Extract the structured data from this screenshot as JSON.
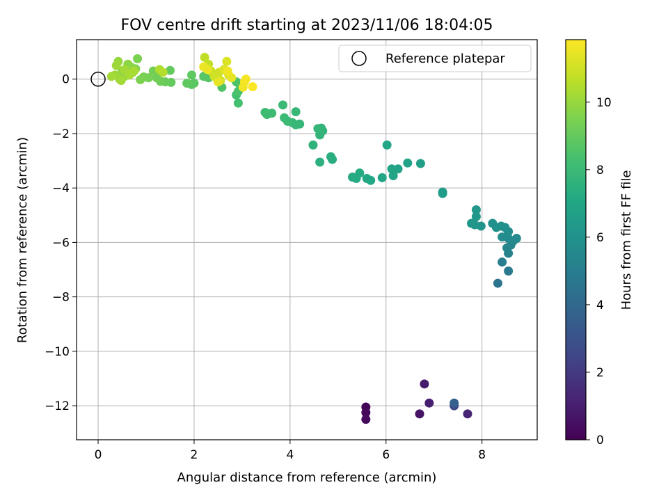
{
  "chart_data": {
    "type": "scatter",
    "title": "FOV centre drift starting at 2023/11/06 18:04:05",
    "xlabel": "Angular distance from reference (arcmin)",
    "ylabel": "Rotation from reference (arcmin)",
    "xlim": [
      -0.45,
      9.15
    ],
    "ylim": [
      -13.25,
      1.45
    ],
    "xticks": [
      0,
      2,
      4,
      6,
      8
    ],
    "yticks": [
      0,
      -2,
      -4,
      -6,
      -8,
      -10,
      -12
    ],
    "xtick_labels": [
      "0",
      "2",
      "4",
      "6",
      "8"
    ],
    "ytick_labels": [
      "0",
      "−2",
      "−4",
      "−6",
      "−8",
      "−10",
      "−12"
    ],
    "grid": true,
    "legend": {
      "placement": "top-right",
      "entries": [
        {
          "label": "Reference platepar",
          "marker": "open-circle"
        }
      ]
    },
    "reference_point": {
      "x": 0,
      "y": 0
    },
    "colorbar": {
      "label": "Hours from first FF file",
      "colormap": "viridis",
      "range": [
        0,
        11.85
      ],
      "ticks": [
        0,
        2,
        4,
        6,
        8,
        10
      ],
      "tick_labels": [
        "0",
        "2",
        "4",
        "6",
        "8",
        "10"
      ]
    },
    "points": [
      {
        "x": 5.58,
        "y": -12.05,
        "h": 0.1
      },
      {
        "x": 5.58,
        "y": -12.25,
        "h": 0.2
      },
      {
        "x": 5.58,
        "y": -12.5,
        "h": 0.3
      },
      {
        "x": 6.7,
        "y": -12.3,
        "h": 0.6
      },
      {
        "x": 6.8,
        "y": -11.2,
        "h": 0.9
      },
      {
        "x": 6.9,
        "y": -11.9,
        "h": 1.0
      },
      {
        "x": 7.7,
        "y": -12.3,
        "h": 1.2
      },
      {
        "x": 7.42,
        "y": -12.0,
        "h": 2.6
      },
      {
        "x": 7.42,
        "y": -11.9,
        "h": 3.6
      },
      {
        "x": 8.33,
        "y": -7.5,
        "h": 4.5
      },
      {
        "x": 8.55,
        "y": -7.05,
        "h": 4.8
      },
      {
        "x": 8.42,
        "y": -6.72,
        "h": 5.0
      },
      {
        "x": 8.55,
        "y": -6.4,
        "h": 5.2
      },
      {
        "x": 8.52,
        "y": -6.2,
        "h": 5.3
      },
      {
        "x": 8.6,
        "y": -6.1,
        "h": 5.4
      },
      {
        "x": 8.65,
        "y": -5.95,
        "h": 5.5
      },
      {
        "x": 8.72,
        "y": -5.85,
        "h": 5.6
      },
      {
        "x": 8.55,
        "y": -5.85,
        "h": 5.6
      },
      {
        "x": 8.42,
        "y": -5.8,
        "h": 5.7
      },
      {
        "x": 8.55,
        "y": -5.6,
        "h": 5.8
      },
      {
        "x": 8.48,
        "y": -5.45,
        "h": 5.9
      },
      {
        "x": 8.4,
        "y": -5.4,
        "h": 5.9
      },
      {
        "x": 8.3,
        "y": -5.45,
        "h": 6.0
      },
      {
        "x": 8.22,
        "y": -5.3,
        "h": 6.0
      },
      {
        "x": 7.98,
        "y": -5.4,
        "h": 6.1
      },
      {
        "x": 7.85,
        "y": -5.35,
        "h": 6.2
      },
      {
        "x": 7.78,
        "y": -5.3,
        "h": 6.2
      },
      {
        "x": 7.88,
        "y": -5.05,
        "h": 6.3
      },
      {
        "x": 7.88,
        "y": -4.8,
        "h": 6.3
      },
      {
        "x": 7.18,
        "y": -4.2,
        "h": 6.5
      },
      {
        "x": 7.18,
        "y": -4.15,
        "h": 6.5
      },
      {
        "x": 6.72,
        "y": -3.1,
        "h": 6.7
      },
      {
        "x": 6.45,
        "y": -3.08,
        "h": 6.8
      },
      {
        "x": 6.25,
        "y": -3.3,
        "h": 6.8
      },
      {
        "x": 6.15,
        "y": -3.55,
        "h": 6.9
      },
      {
        "x": 6.12,
        "y": -3.3,
        "h": 6.9
      },
      {
        "x": 6.02,
        "y": -2.42,
        "h": 7.0
      },
      {
        "x": 5.92,
        "y": -3.62,
        "h": 7.0
      },
      {
        "x": 5.68,
        "y": -3.72,
        "h": 7.1
      },
      {
        "x": 5.6,
        "y": -3.65,
        "h": 7.1
      },
      {
        "x": 5.45,
        "y": -3.45,
        "h": 7.2
      },
      {
        "x": 5.38,
        "y": -3.65,
        "h": 7.2
      },
      {
        "x": 5.3,
        "y": -3.6,
        "h": 7.2
      },
      {
        "x": 4.88,
        "y": -2.95,
        "h": 7.4
      },
      {
        "x": 4.85,
        "y": -2.85,
        "h": 7.4
      },
      {
        "x": 4.62,
        "y": -3.05,
        "h": 7.5
      },
      {
        "x": 4.48,
        "y": -2.42,
        "h": 7.6
      },
      {
        "x": 4.62,
        "y": -2.05,
        "h": 7.7
      },
      {
        "x": 4.68,
        "y": -1.9,
        "h": 7.7
      },
      {
        "x": 4.65,
        "y": -1.8,
        "h": 7.7
      },
      {
        "x": 4.58,
        "y": -1.82,
        "h": 7.8
      },
      {
        "x": 4.2,
        "y": -1.65,
        "h": 7.8
      },
      {
        "x": 4.12,
        "y": -1.68,
        "h": 7.9
      },
      {
        "x": 4.05,
        "y": -1.6,
        "h": 7.9
      },
      {
        "x": 4.12,
        "y": -1.2,
        "h": 7.9
      },
      {
        "x": 3.95,
        "y": -1.55,
        "h": 8.0
      },
      {
        "x": 3.88,
        "y": -1.42,
        "h": 8.0
      },
      {
        "x": 3.85,
        "y": -0.95,
        "h": 8.0
      },
      {
        "x": 3.62,
        "y": -1.25,
        "h": 8.1
      },
      {
        "x": 3.52,
        "y": -1.3,
        "h": 8.1
      },
      {
        "x": 3.48,
        "y": -1.22,
        "h": 8.1
      },
      {
        "x": 2.92,
        "y": -0.88,
        "h": 8.3
      },
      {
        "x": 2.88,
        "y": -0.58,
        "h": 8.3
      },
      {
        "x": 2.92,
        "y": -0.45,
        "h": 8.4
      },
      {
        "x": 2.95,
        "y": -0.2,
        "h": 8.5
      },
      {
        "x": 2.88,
        "y": -0.1,
        "h": 8.5
      },
      {
        "x": 2.58,
        "y": -0.3,
        "h": 8.6
      },
      {
        "x": 2.3,
        "y": 0.05,
        "h": 8.7
      },
      {
        "x": 2.2,
        "y": 0.1,
        "h": 8.7
      },
      {
        "x": 2.0,
        "y": -0.15,
        "h": 8.8
      },
      {
        "x": 1.95,
        "y": -0.2,
        "h": 8.8
      },
      {
        "x": 1.85,
        "y": -0.15,
        "h": 8.9
      },
      {
        "x": 1.95,
        "y": 0.15,
        "h": 8.9
      },
      {
        "x": 1.52,
        "y": -0.12,
        "h": 9.0
      },
      {
        "x": 1.5,
        "y": 0.32,
        "h": 9.0
      },
      {
        "x": 1.4,
        "y": -0.1,
        "h": 9.1
      },
      {
        "x": 1.3,
        "y": -0.08,
        "h": 9.2
      },
      {
        "x": 1.3,
        "y": 0.3,
        "h": 9.2
      },
      {
        "x": 1.22,
        "y": 0.05,
        "h": 9.3
      },
      {
        "x": 1.15,
        "y": 0.3,
        "h": 9.3
      },
      {
        "x": 1.05,
        "y": 0.05,
        "h": 9.4
      },
      {
        "x": 0.95,
        "y": 0.08,
        "h": 9.4
      },
      {
        "x": 0.88,
        "y": -0.02,
        "h": 9.5
      },
      {
        "x": 0.82,
        "y": 0.75,
        "h": 9.5
      },
      {
        "x": 0.78,
        "y": 0.38,
        "h": 9.6
      },
      {
        "x": 0.72,
        "y": 0.25,
        "h": 9.7
      },
      {
        "x": 0.68,
        "y": 0.45,
        "h": 9.7
      },
      {
        "x": 0.62,
        "y": 0.55,
        "h": 9.8
      },
      {
        "x": 0.55,
        "y": 0.1,
        "h": 9.9
      },
      {
        "x": 0.5,
        "y": 0.3,
        "h": 9.9
      },
      {
        "x": 0.45,
        "y": 0.0,
        "h": 10.0
      },
      {
        "x": 0.42,
        "y": 0.65,
        "h": 10.0
      },
      {
        "x": 0.38,
        "y": 0.5,
        "h": 10.1
      },
      {
        "x": 0.35,
        "y": 0.15,
        "h": 10.1
      },
      {
        "x": 0.28,
        "y": 0.1,
        "h": 10.2
      },
      {
        "x": 0.48,
        "y": -0.05,
        "h": 10.2
      },
      {
        "x": 0.55,
        "y": 0.35,
        "h": 10.2
      },
      {
        "x": 0.65,
        "y": 0.15,
        "h": 10.3
      },
      {
        "x": 0.75,
        "y": 0.3,
        "h": 10.3
      },
      {
        "x": 1.28,
        "y": 0.35,
        "h": 10.4
      },
      {
        "x": 1.35,
        "y": 0.25,
        "h": 10.5
      },
      {
        "x": 2.22,
        "y": 0.8,
        "h": 10.7
      },
      {
        "x": 2.3,
        "y": 0.55,
        "h": 10.8
      },
      {
        "x": 2.35,
        "y": 0.3,
        "h": 10.9
      },
      {
        "x": 2.42,
        "y": 0.1,
        "h": 11.0
      },
      {
        "x": 2.52,
        "y": 0.25,
        "h": 11.0
      },
      {
        "x": 2.55,
        "y": -0.05,
        "h": 11.1
      },
      {
        "x": 2.62,
        "y": 0.35,
        "h": 11.2
      },
      {
        "x": 2.68,
        "y": 0.65,
        "h": 11.2
      },
      {
        "x": 2.72,
        "y": 0.15,
        "h": 11.3
      },
      {
        "x": 2.78,
        "y": 0.05,
        "h": 11.4
      },
      {
        "x": 2.5,
        "y": -0.1,
        "h": 11.4
      },
      {
        "x": 2.28,
        "y": 0.35,
        "h": 11.5
      },
      {
        "x": 2.2,
        "y": 0.45,
        "h": 11.5
      },
      {
        "x": 2.7,
        "y": 0.3,
        "h": 11.6
      },
      {
        "x": 3.02,
        "y": -0.3,
        "h": 11.6
      },
      {
        "x": 3.05,
        "y": -0.1,
        "h": 11.7
      },
      {
        "x": 3.08,
        "y": 0.0,
        "h": 11.7
      },
      {
        "x": 3.22,
        "y": -0.28,
        "h": 11.8
      }
    ]
  }
}
